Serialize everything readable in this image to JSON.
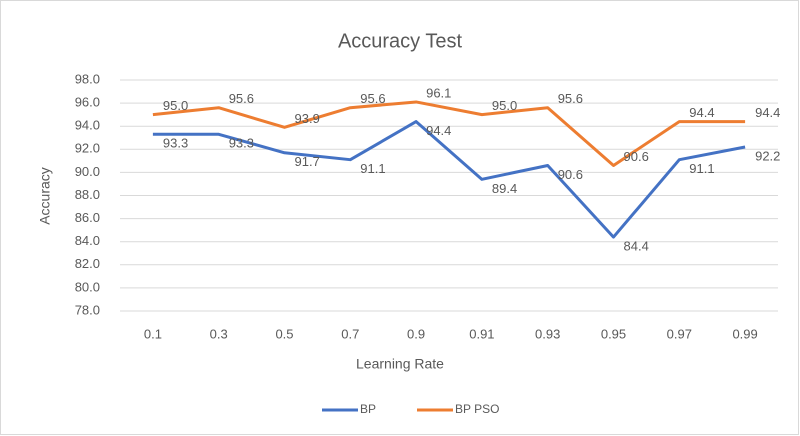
{
  "chart_data": {
    "type": "line",
    "title": "Accuracy Test",
    "x_label": "Learning Rate",
    "y_label": "Accuracy",
    "categories": [
      "0.1",
      "0.3",
      "0.5",
      "0.7",
      "0.9",
      "0.91",
      "0.93",
      "0.95",
      "0.97",
      "0.99"
    ],
    "series": [
      {
        "name": "BP",
        "color": "#4472c4",
        "values": [
          93.3,
          93.3,
          91.7,
          91.1,
          94.4,
          89.4,
          90.6,
          84.4,
          91.1,
          92.2
        ],
        "value_labels": [
          "93.3",
          "93.3",
          "91.7",
          "91.1",
          "94.4",
          "89.4",
          "90.6",
          "84.4",
          "91.1",
          "92.2"
        ]
      },
      {
        "name": "BP PSO",
        "color": "#ed7d31",
        "values": [
          95.0,
          95.6,
          93.9,
          95.6,
          96.1,
          95.0,
          95.6,
          90.6,
          94.4,
          94.4
        ],
        "value_labels": [
          "95.0",
          "95.6",
          "93.9",
          "95.6",
          "96.1",
          "95.0",
          "95.6",
          "90.6",
          "94.4",
          "94.4"
        ]
      }
    ],
    "ylim": [
      78,
      98
    ],
    "yticks": [
      {
        "value": 78,
        "label": "78.0"
      },
      {
        "value": 80,
        "label": "80.0"
      },
      {
        "value": 82,
        "label": "82.0"
      },
      {
        "value": 84,
        "label": "84.0"
      },
      {
        "value": 86,
        "label": "86.0"
      },
      {
        "value": 88,
        "label": "88.0"
      },
      {
        "value": 90,
        "label": "90.0"
      },
      {
        "value": 92,
        "label": "92.0"
      },
      {
        "value": 94,
        "label": "94.0"
      },
      {
        "value": 96,
        "label": "96.0"
      },
      {
        "value": 98,
        "label": "98.0"
      }
    ],
    "grid": true,
    "legend": "bottom"
  }
}
